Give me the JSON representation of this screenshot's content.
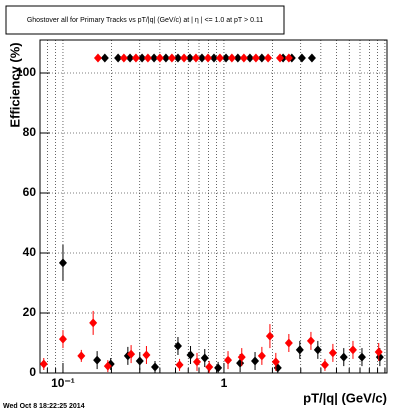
{
  "chart_data": {
    "type": "scatter",
    "title": "Ghostover all for Primary Tracks vs pT/|q| (GeV/c) at | η | <= 1.0 at pT > 0.11",
    "xlabel": "pT/|q| (GeV/c)",
    "ylabel": "Efficiency (%)",
    "timestamp": "Wed Oct  8 18:22:25 2014",
    "xscale": "log",
    "grid": true,
    "xlim": [
      0.072,
      10.3
    ],
    "ylim": [
      0,
      111
    ],
    "xticks": [
      {
        "value": 0.1,
        "label": "10⁻¹"
      },
      1
    ],
    "xminor": [
      0.08,
      0.09,
      0.2,
      0.3,
      0.4,
      0.5,
      0.6,
      0.7,
      0.8,
      0.9,
      2,
      3,
      4,
      5,
      6,
      7,
      8,
      9,
      10
    ],
    "yticks": [
      0,
      20,
      40,
      60,
      80,
      100
    ],
    "series": [
      {
        "color": "#000000",
        "x": [
          0.1,
          0.163,
          0.198,
          0.253,
          0.3,
          0.373,
          0.518,
          0.62,
          0.76,
          0.92,
          1.26,
          1.56,
          2.16,
          2.96,
          3.83,
          5.55,
          7.2,
          9.3,
          0.182,
          0.22,
          0.261,
          0.31,
          0.368,
          0.436,
          0.518,
          0.615,
          0.73,
          0.867,
          1.03,
          1.22,
          1.45,
          1.72,
          2.33,
          2.64,
          3.05,
          3.52
        ],
        "values": [
          36.7,
          4.3,
          3,
          5.7,
          4,
          2,
          9,
          6,
          5,
          1.7,
          3.3,
          4,
          1.7,
          7.7,
          7.7,
          5.3,
          5.3,
          5.3,
          105,
          105,
          105,
          105,
          105,
          105,
          105,
          105,
          105,
          105,
          105,
          105,
          105,
          105,
          105,
          105,
          105,
          105
        ],
        "errors": [
          6,
          3,
          2,
          3,
          3,
          2,
          3,
          3,
          3,
          2,
          3,
          3,
          2,
          3,
          3,
          3,
          3,
          3,
          0,
          0,
          0,
          0,
          0,
          0,
          0,
          0,
          0,
          0,
          0,
          0,
          0,
          0,
          0,
          0,
          0,
          0
        ]
      },
      {
        "color": "#ff0000",
        "x": [
          0.076,
          0.1,
          0.13,
          0.154,
          0.19,
          0.265,
          0.33,
          0.53,
          0.68,
          0.81,
          1.06,
          1.29,
          1.72,
          1.93,
          2.1,
          2.53,
          3.47,
          4.24,
          4.75,
          6.33,
          9.15,
          0.165,
          0.239,
          0.284,
          0.337,
          0.4,
          0.475,
          0.565,
          0.67,
          0.796,
          0.944,
          1.12,
          1.33,
          1.58,
          1.88,
          2.23,
          2.53
        ],
        "values": [
          3,
          11.3,
          5.7,
          16.7,
          2.3,
          6.3,
          6,
          2.7,
          3.7,
          2,
          4.3,
          5.3,
          5.7,
          12.3,
          3.7,
          10,
          10.7,
          2.7,
          6.7,
          7.7,
          7,
          105,
          105,
          105,
          105,
          105,
          105,
          105,
          105,
          105,
          105,
          105,
          105,
          105,
          105,
          105,
          105
        ],
        "errors": [
          2,
          3,
          2,
          4,
          2,
          3,
          3,
          2,
          3,
          2,
          3,
          3,
          3,
          4,
          3,
          3,
          3,
          2,
          3,
          3,
          3,
          0,
          0,
          0,
          0,
          0,
          0,
          0,
          0,
          0,
          0,
          0,
          0,
          0,
          0,
          0,
          0
        ]
      }
    ]
  }
}
